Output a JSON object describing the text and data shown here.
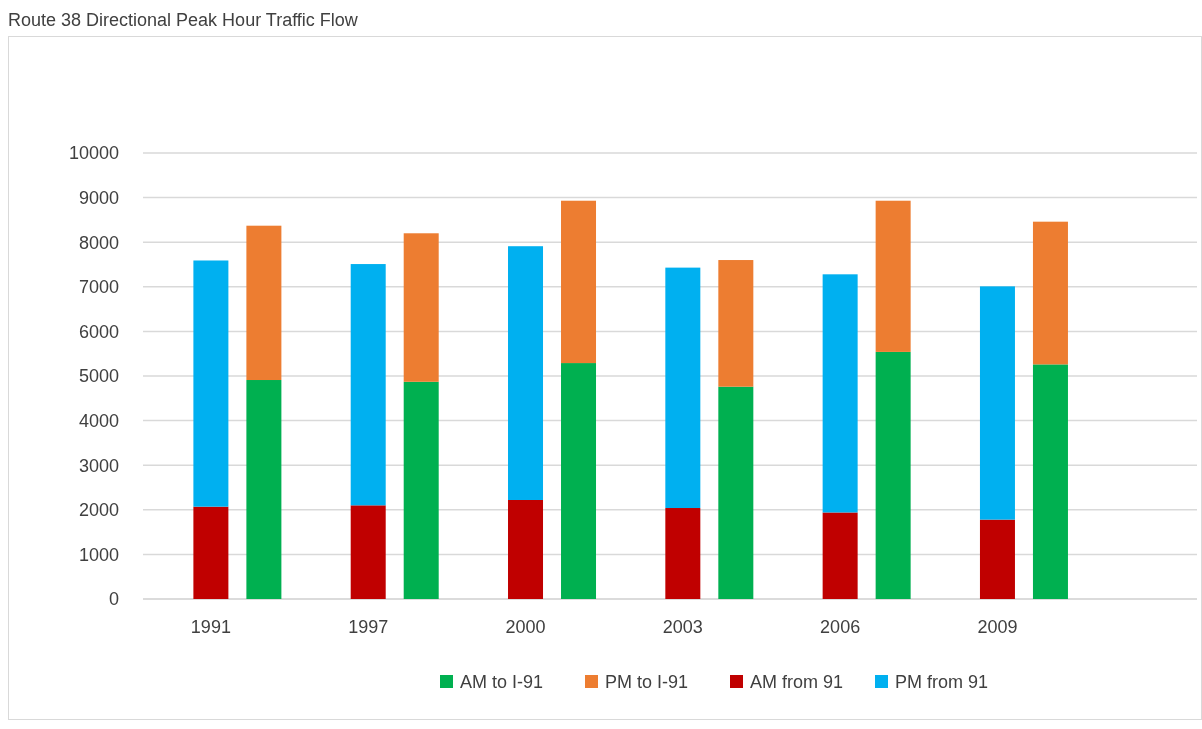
{
  "chart_data": {
    "type": "bar",
    "title": "Route 38 Directional Peak Hour Traffic Flow",
    "stacked": true,
    "categories": [
      "1991",
      null,
      "1997",
      null,
      "2000",
      null,
      "2003",
      null,
      "2006",
      null,
      "2009",
      null
    ],
    "series": [
      {
        "name": "AM to I-91",
        "color": "#00b050",
        "values": [
          null,
          4910,
          null,
          4870,
          null,
          5290,
          null,
          4760,
          null,
          5540,
          null,
          5260
        ]
      },
      {
        "name": "PM to I-91",
        "color": "#ed7d31",
        "values": [
          null,
          3460,
          null,
          3330,
          null,
          3640,
          null,
          2840,
          null,
          3390,
          null,
          3200
        ]
      },
      {
        "name": "AM from 91",
        "color": "#c00000",
        "values": [
          2070,
          null,
          2100,
          null,
          2220,
          null,
          2040,
          null,
          1940,
          null,
          1780,
          null
        ]
      },
      {
        "name": "PM from 91",
        "color": "#00b0f0",
        "values": [
          5520,
          null,
          5410,
          null,
          5690,
          null,
          5390,
          null,
          5340,
          null,
          5230,
          null
        ]
      }
    ],
    "ylim": [
      0,
      10000
    ],
    "yticks": [
      0,
      1000,
      2000,
      3000,
      4000,
      5000,
      6000,
      7000,
      8000,
      9000,
      10000
    ],
    "grid": "y",
    "legend": "bottom"
  }
}
